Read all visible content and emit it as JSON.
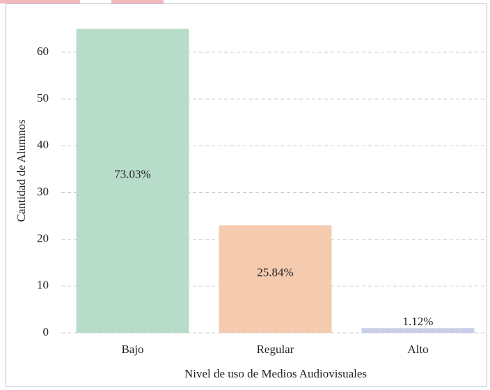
{
  "chart_data": {
    "type": "bar",
    "categories": [
      "Bajo",
      "Regular",
      "Alto"
    ],
    "values": [
      65,
      23,
      1
    ],
    "percent_labels": [
      "73.03%",
      "25.84%",
      "1.12%"
    ],
    "colors": [
      "#b7dcc9",
      "#f5cbb0",
      "#c9cde6"
    ],
    "x_label": "Nivel de uso de Medios Audiovisuales",
    "y_label": "Cantidad de Alumnos",
    "ylim": [
      0,
      67
    ],
    "yticks": [
      0,
      10,
      20,
      30,
      40,
      50,
      60
    ],
    "grid": true
  }
}
